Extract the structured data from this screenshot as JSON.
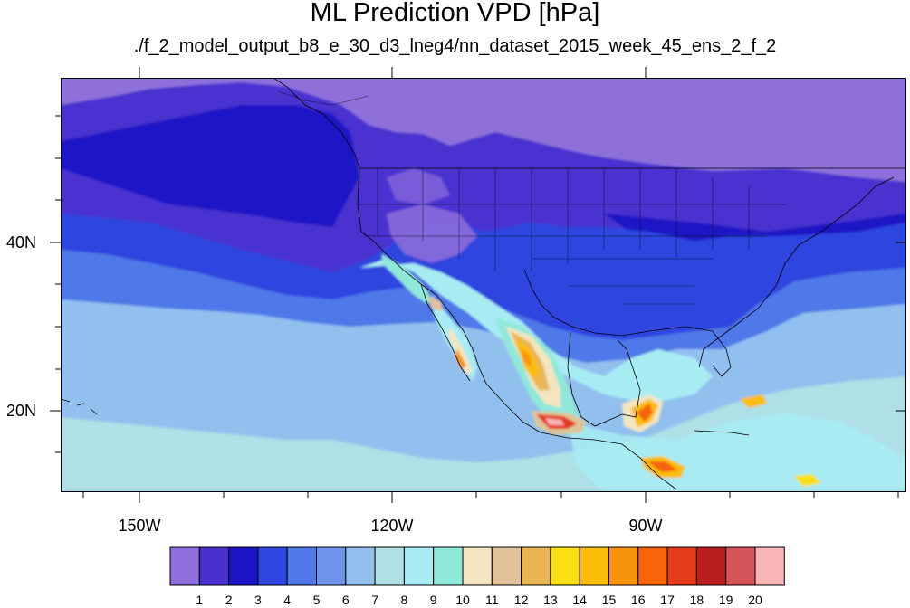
{
  "title": "ML Prediction VPD [hPa]",
  "subtitle": "./f_2_model_output_b8_e_30_d3_lneg4/nn_dataset_2015_week_45_ens_2_f_2",
  "axes": {
    "lon_labels": [
      "150W",
      "120W",
      "90W"
    ],
    "lat_labels": [
      "40N",
      "20N"
    ]
  },
  "colorbar": {
    "labels": [
      "1",
      "2",
      "3",
      "4",
      "5",
      "6",
      "7",
      "8",
      "9",
      "10",
      "11",
      "12",
      "13",
      "14",
      "15",
      "16",
      "17",
      "18",
      "19",
      "20"
    ],
    "colors": [
      "#8f6fdb",
      "#4830cf",
      "#1a14c4",
      "#2f45df",
      "#4f78e8",
      "#6f93ea",
      "#92c0ee",
      "#aee0e6",
      "#a8ecf3",
      "#90e8d8",
      "#f2e5c0",
      "#e0c498",
      "#e9b653",
      "#fbdf12",
      "#fbbc0a",
      "#fa930c",
      "#f8640a",
      "#e43b1c",
      "#b91f1f",
      "#d4545a",
      "#f8b5b6"
    ]
  }
}
